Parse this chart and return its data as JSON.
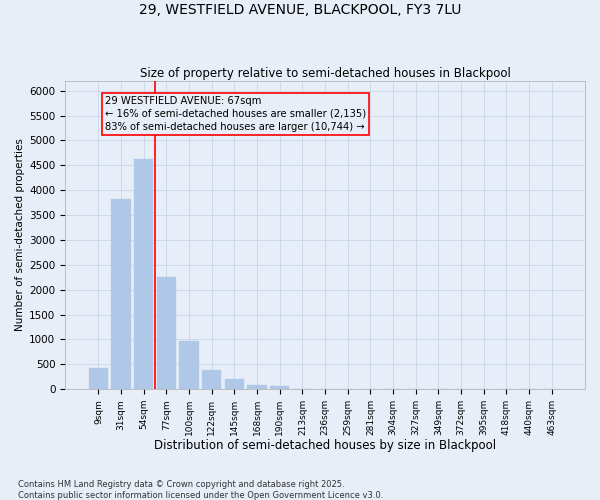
{
  "title_line1": "29, WESTFIELD AVENUE, BLACKPOOL, FY3 7LU",
  "title_line2": "Size of property relative to semi-detached houses in Blackpool",
  "xlabel": "Distribution of semi-detached houses by size in Blackpool",
  "ylabel": "Number of semi-detached properties",
  "categories": [
    "9sqm",
    "31sqm",
    "54sqm",
    "77sqm",
    "100sqm",
    "122sqm",
    "145sqm",
    "168sqm",
    "190sqm",
    "213sqm",
    "236sqm",
    "259sqm",
    "281sqm",
    "304sqm",
    "327sqm",
    "349sqm",
    "372sqm",
    "395sqm",
    "418sqm",
    "440sqm",
    "463sqm"
  ],
  "values": [
    430,
    3820,
    4620,
    2250,
    970,
    390,
    210,
    80,
    60,
    0,
    0,
    0,
    0,
    0,
    0,
    0,
    0,
    0,
    0,
    0,
    0
  ],
  "bar_color": "#b0c8e8",
  "bar_edgecolor": "#b0c8e8",
  "vline_position": 2.5,
  "vline_color": "red",
  "annotation_text": "29 WESTFIELD AVENUE: 67sqm\n← 16% of semi-detached houses are smaller (2,135)\n83% of semi-detached houses are larger (10,744) →",
  "box_edgecolor": "red",
  "ylim": [
    0,
    6200
  ],
  "yticks": [
    0,
    500,
    1000,
    1500,
    2000,
    2500,
    3000,
    3500,
    4000,
    4500,
    5000,
    5500,
    6000
  ],
  "grid_color": "#c8d4e8",
  "bg_color": "#e8eef8",
  "footnote_line1": "Contains HM Land Registry data © Crown copyright and database right 2025.",
  "footnote_line2": "Contains public sector information licensed under the Open Government Licence v3.0."
}
